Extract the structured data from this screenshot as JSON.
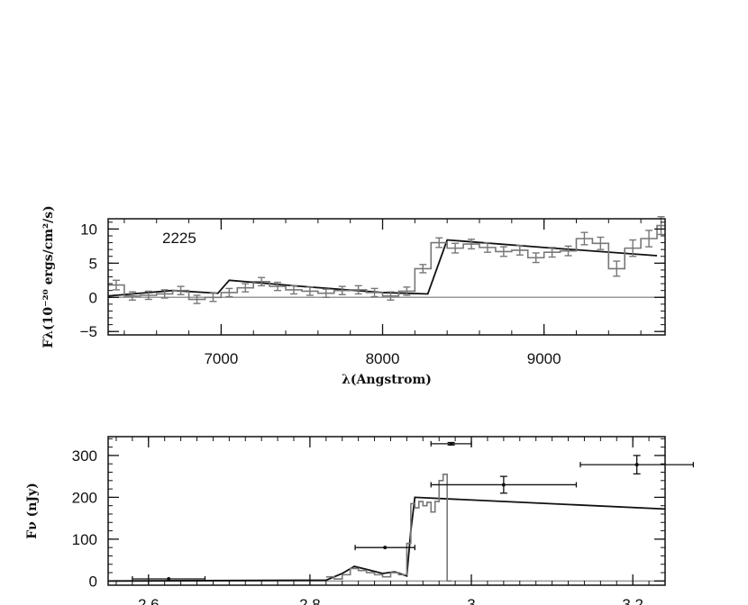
{
  "chart_data": [
    {
      "type": "line",
      "annotation": "2225",
      "xlabel": "λ(Angstrom)",
      "ylabel": "Fλ(10⁻²⁰ ergs/cm²/s)",
      "xlim": [
        6300,
        9750
      ],
      "ylim": [
        -5.5,
        11.5
      ],
      "xticks": [
        7000,
        8000,
        9000
      ],
      "xtick_labels": [
        "7000",
        "8000",
        "9000"
      ],
      "yticks": [
        -5,
        0,
        5,
        10
      ],
      "ytick_labels": [
        "−5",
        "0",
        "5",
        "10"
      ],
      "zero_line": 0,
      "series": [
        {
          "kind": "model-line",
          "color": "#111111",
          "x": [
            6300,
            6700,
            6980,
            7050,
            7500,
            8000,
            8280,
            8400,
            9000,
            9700
          ],
          "y": [
            0.2,
            1.0,
            0.6,
            2.5,
            1.6,
            0.7,
            0.5,
            8.4,
            7.3,
            6.1
          ]
        },
        {
          "kind": "observed-step",
          "color": "#777777",
          "bin_edges": [
            6300,
            6400,
            6500,
            6600,
            6700,
            6800,
            6900,
            7000,
            7100,
            7200,
            7300,
            7400,
            7500,
            7600,
            7700,
            7800,
            7900,
            8000,
            8100,
            8200,
            8300,
            8400,
            8500,
            8600,
            8700,
            8800,
            8900,
            9000,
            9100,
            9200,
            9300,
            9400,
            9500,
            9600,
            9700,
            9750
          ],
          "values": [
            1.8,
            0.2,
            0.3,
            0.5,
            1.0,
            -0.3,
            0.0,
            0.7,
            1.4,
            2.3,
            1.6,
            1.1,
            0.9,
            0.6,
            1.0,
            1.1,
            0.7,
            0.2,
            0.9,
            4.2,
            8.0,
            7.2,
            7.8,
            7.3,
            6.7,
            6.9,
            5.8,
            6.6,
            6.8,
            8.6,
            7.9,
            4.2,
            7.2,
            8.6,
            10.5
          ],
          "errors": [
            0.7,
            0.6,
            0.6,
            0.6,
            0.6,
            0.6,
            0.6,
            0.6,
            0.6,
            0.6,
            0.6,
            0.6,
            0.6,
            0.6,
            0.6,
            0.6,
            0.6,
            0.6,
            0.6,
            0.6,
            0.7,
            0.7,
            0.7,
            0.7,
            0.7,
            0.7,
            0.7,
            0.7,
            0.7,
            0.9,
            0.9,
            1.1,
            1.2,
            1.2,
            1.3
          ]
        }
      ]
    },
    {
      "type": "line",
      "xlabel": "",
      "ylabel": "Fν (nJy)",
      "xlim": [
        2.55,
        3.24
      ],
      "ylim": [
        -10,
        345
      ],
      "xticks": [
        2.6,
        2.8,
        3,
        3.2
      ],
      "xtick_labels": [
        "2.6",
        "2.8",
        "3",
        "3.2"
      ],
      "yticks": [
        0,
        100,
        200,
        300
      ],
      "ytick_labels": [
        "0",
        "100",
        "200",
        "300"
      ],
      "zero_line": 0,
      "series": [
        {
          "kind": "model-line",
          "color": "#111111",
          "x": [
            2.55,
            2.82,
            2.84,
            2.855,
            2.87,
            2.89,
            2.905,
            2.92,
            2.925,
            2.93,
            3.24
          ],
          "y": [
            0,
            2,
            18,
            35,
            28,
            18,
            22,
            12,
            120,
            200,
            172
          ]
        },
        {
          "kind": "observed-step",
          "color": "#777777",
          "bin_edges": [
            2.82,
            2.83,
            2.84,
            2.85,
            2.86,
            2.87,
            2.88,
            2.89,
            2.9,
            2.91,
            2.92,
            2.925,
            2.93,
            2.935,
            2.94,
            2.945,
            2.95,
            2.955,
            2.96,
            2.965,
            2.97,
            2.975
          ],
          "values": [
            10,
            5,
            15,
            30,
            25,
            20,
            15,
            10,
            20,
            15,
            90,
            185,
            175,
            190,
            180,
            188,
            165,
            190,
            240,
            255,
            0
          ]
        },
        {
          "kind": "broadband-points",
          "color": "#111111",
          "x": [
            2.625,
            2.893,
            2.975,
            3.04,
            3.205
          ],
          "y": [
            5,
            80,
            328,
            230,
            278
          ],
          "xerr": [
            0.045,
            0.037,
            0.025,
            0.09,
            0.07
          ],
          "yerr": [
            0,
            0,
            3,
            20,
            22
          ]
        }
      ]
    }
  ]
}
